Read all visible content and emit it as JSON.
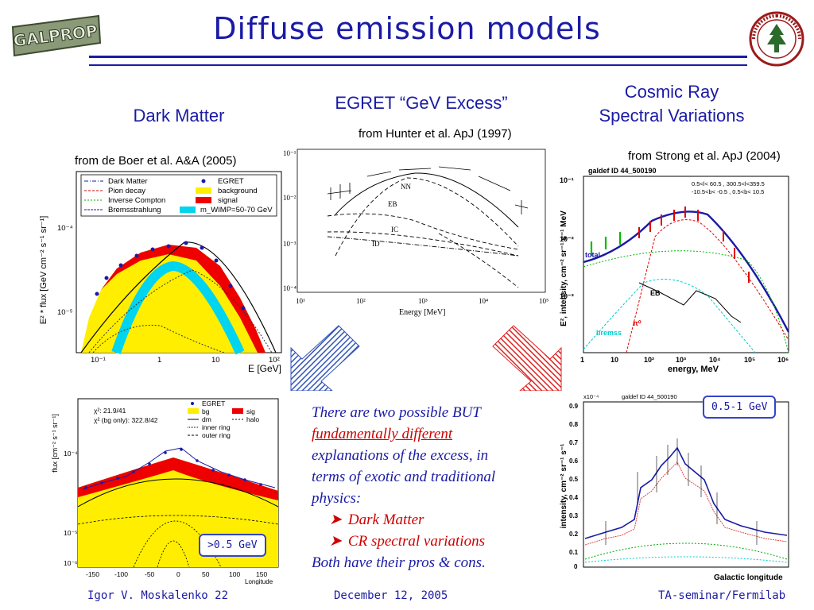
{
  "logo_left_text": "GALPROP",
  "title": "Diffuse emission models",
  "columns": {
    "dark_matter": "Dark Matter",
    "egret_line1": "EGRET  “GeV Excess”",
    "cosmic_line1": "Cosmic Ray",
    "cosmic_line2": "Spectral Variations"
  },
  "citations": {
    "de_boer": "from de Boer et al.  A&A (2005)",
    "hunter": "from Hunter et al. ApJ (1997)",
    "strong": "from Strong et al. ApJ (2004)"
  },
  "plots": {
    "dm_spectrum": {
      "ylabel": "E² * flux [GeV cm⁻² s⁻¹ sr⁻¹]",
      "xlabel": "E [GeV]",
      "yticks": [
        "10⁻⁴",
        "10⁻⁵"
      ],
      "xticks": [
        "10⁻¹",
        "1",
        "10",
        "10²"
      ],
      "legend": [
        "Dark Matter",
        "Pion decay",
        "Inverse Compton",
        "Bremsstrahlung",
        "EGRET",
        "background",
        "signal",
        "m_WIMP=50-70 GeV"
      ]
    },
    "egret_spectrum": {
      "xlabel": "Energy [MeV]",
      "xticks": [
        "10¹",
        "10²",
        "10³",
        "10⁴",
        "10⁵"
      ],
      "yticks": [
        "10⁻¹",
        "10⁻²",
        "10⁻³",
        "10⁻⁴"
      ],
      "curve_labels": [
        "NN",
        "EB",
        "IC",
        "ID"
      ]
    },
    "cr_spectrum": {
      "header": "galdef ID 44_500190",
      "box_line1": "0.5<l< 60.5 , 300.5<l<359.5",
      "box_line2": "-10.5<b< -0.5 ,  0.5<b< 10.5",
      "ylabel": "E², intensity, cm⁻² sr⁻¹ s⁻¹ MeV",
      "xlabel": "energy, MeV",
      "xticks": [
        "1",
        "10",
        "10²",
        "10³",
        "10⁴",
        "10⁵",
        "10⁶"
      ],
      "yticks": [
        "10⁻¹",
        "10⁻²",
        "10⁻³"
      ],
      "curve_labels": [
        "total",
        "EB",
        "π⁰",
        "bremss"
      ]
    },
    "dm_longitude": {
      "ylabel": "flux [cm⁻² s⁻¹ sr⁻¹]",
      "xlabel": "Longitude",
      "xticks": [
        "-150",
        "-100",
        "-50",
        "0",
        "50",
        "100",
        "150"
      ],
      "yticks": [
        "10⁻⁴",
        "10⁻⁵",
        "10⁻⁶"
      ],
      "chi_line1": "χ²:          21.9/41",
      "chi_line2": "χ² (bg only):  322.8/42",
      "legend": [
        "EGRET",
        "bg",
        "sig",
        "dm",
        "halo",
        "inner ring",
        "outer ring"
      ],
      "badge": ">0.5 GeV"
    },
    "cr_longitude": {
      "header": "galdef ID 44_500190",
      "exponent": "x10⁻⁴",
      "ylabel": "intensity, cm⁻² sr⁻¹ s⁻¹",
      "xlabel": "Galactic longitude",
      "yticks": [
        "0.9",
        "0.8",
        "0.7",
        "0.6",
        "0.5",
        "0.4",
        "0.3",
        "0.2",
        "0.1",
        "0"
      ],
      "badge": "0.5-1 GeV"
    }
  },
  "center_text": {
    "line1": "There are two possible BUT",
    "line2": "fundamentally different",
    "line3": "explanations of the excess, in",
    "line4": "terms of exotic and traditional",
    "line5": "physics:",
    "bullet1": "Dark Matter",
    "bullet2": "CR spectral variations",
    "line6": "Both have their pros & cons."
  },
  "footer": {
    "author": "Igor V. Moskalenko  22",
    "date": "December 12, 2005",
    "venue": "TA-seminar/Fermilab"
  },
  "colors": {
    "title_blue": "#1a1aa6",
    "signal_red": "#ee0000",
    "background_yellow": "#ffee00",
    "wimp_cyan": "#00d4ee"
  }
}
